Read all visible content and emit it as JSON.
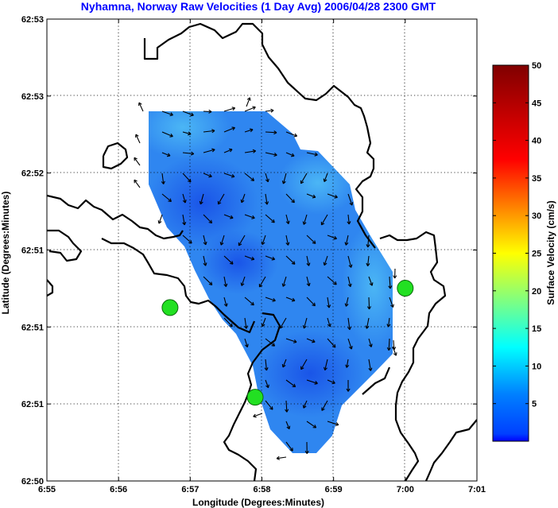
{
  "chart_data": {
    "type": "heatmap",
    "title": "Nyhamna, Norway Raw Velocities (1 Day Avg) 2006/04/28 2300 GMT",
    "xlabel": "Longitude (Degrees:Minutes)",
    "ylabel": "Latitude (Degrees:Minutes)",
    "x_ticks": [
      "6:55",
      "6:56",
      "6:57",
      "6:58",
      "6:59",
      "7:00",
      "7:01"
    ],
    "y_ticks": [
      "62:50",
      "62:51",
      "62:51",
      "62:51",
      "62:52",
      "62:53",
      "62:53"
    ],
    "grid": true,
    "colorbar": {
      "label": "Surface Velocity (cm/s)",
      "range": [
        0,
        50
      ],
      "ticks": [
        "5",
        "10",
        "15",
        "20",
        "25",
        "30",
        "35",
        "40",
        "45",
        "50"
      ]
    },
    "stations": [
      {
        "lon": 6.9453,
        "lat": 62.8521
      },
      {
        "lon": 6.9651,
        "lat": 62.8424
      },
      {
        "lon": 7.0,
        "lat": 62.8542
      }
    ],
    "coverage_speed_range": [
      3,
      8
    ]
  }
}
